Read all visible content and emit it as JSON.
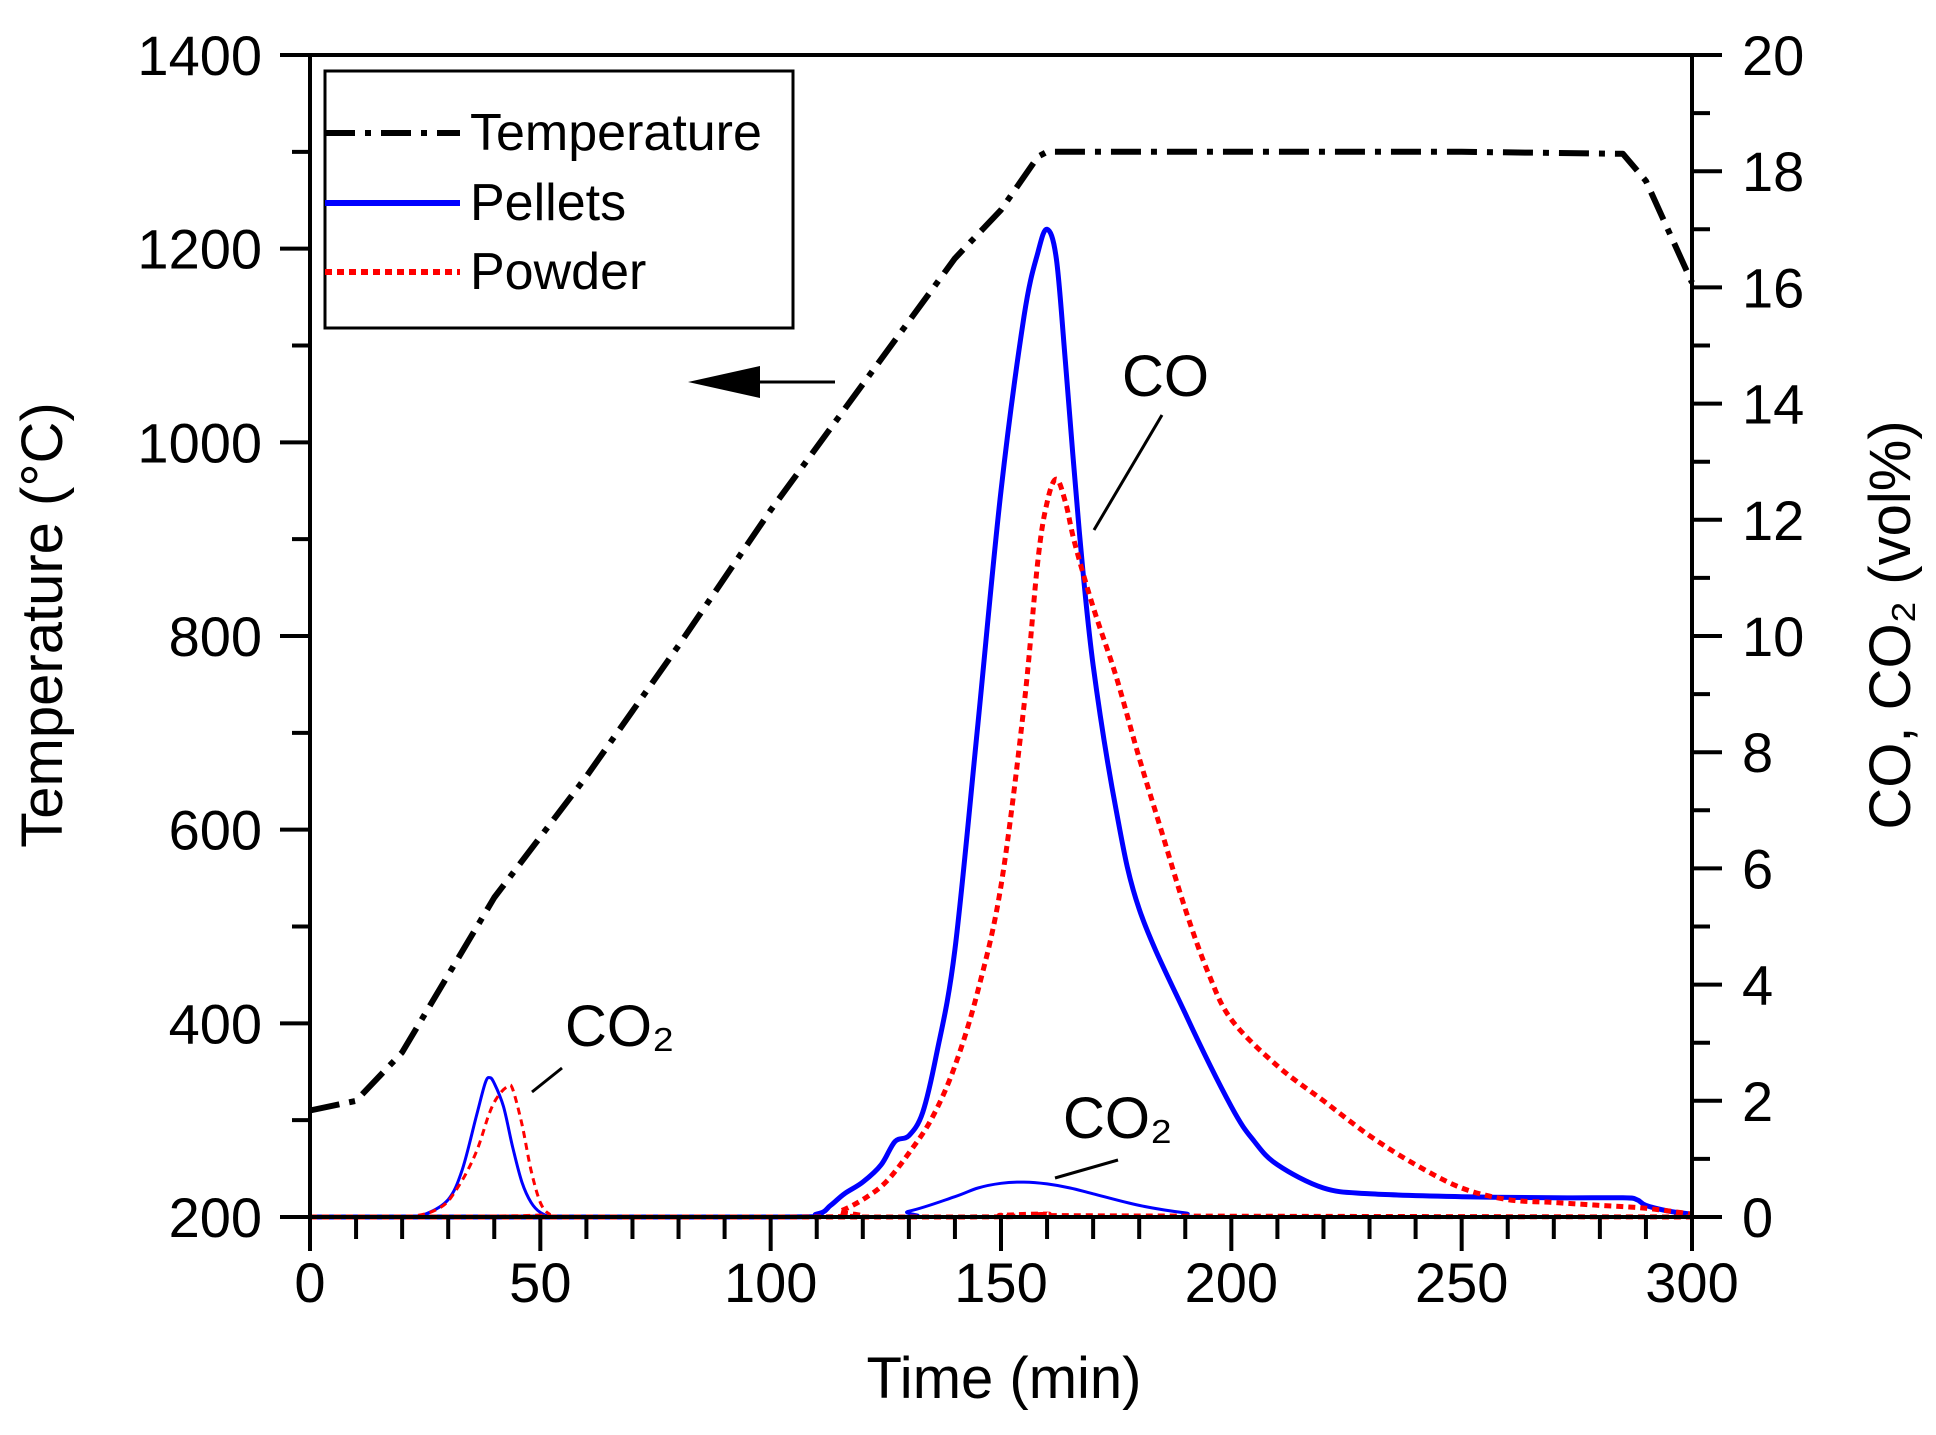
{
  "chart_data": {
    "type": "line",
    "xlabel": "Time (min)",
    "ylabel_left": "Temperature (°C)",
    "ylabel_right": "CO, CO₂ (vol%)",
    "xlim": [
      0,
      300
    ],
    "ylim_left": [
      200,
      1400
    ],
    "ylim_right": [
      0,
      20
    ],
    "x_ticks": [
      0,
      50,
      100,
      150,
      200,
      250,
      300
    ],
    "y_ticks_left": [
      200,
      400,
      600,
      800,
      1000,
      1200,
      1400
    ],
    "y_ticks_right": [
      0,
      2,
      4,
      6,
      8,
      10,
      12,
      14,
      16,
      18,
      20
    ],
    "grid": false,
    "legend_position": "top-left",
    "legend": [
      {
        "label": "Temperature",
        "color": "#000000",
        "style": "dash-dot"
      },
      {
        "label": "Pellets",
        "color": "#0000ff",
        "style": "solid"
      },
      {
        "label": "Powder",
        "color": "#ff0000",
        "style": "dotted"
      }
    ],
    "annotations": {
      "co_label": "CO",
      "co2_label_1": "CO₂",
      "co2_label_2": "CO₂"
    },
    "series": [
      {
        "name": "Temperature",
        "axis": "left",
        "color": "#000000",
        "x": [
          0,
          10,
          20,
          40,
          60,
          80,
          100,
          120,
          140,
          150,
          158,
          160,
          200,
          250,
          285,
          290,
          300
        ],
        "y": [
          310,
          320,
          370,
          530,
          655,
          790,
          930,
          1060,
          1190,
          1240,
          1295,
          1300,
          1300,
          1300,
          1298,
          1270,
          1165
        ]
      },
      {
        "name": "Pellets CO",
        "axis": "right",
        "color": "#0000ff",
        "x": [
          0,
          100,
          110,
          113,
          116,
          120,
          124,
          127,
          130,
          133,
          136,
          140,
          145,
          150,
          155,
          158,
          160,
          162,
          164,
          167,
          170,
          175,
          180,
          190,
          200,
          205,
          210,
          220,
          230,
          250,
          270,
          285,
          288,
          290,
          295,
          300
        ],
        "y": [
          0,
          0,
          0.05,
          0.2,
          0.4,
          0.6,
          0.9,
          1.3,
          1.4,
          1.8,
          2.8,
          4.6,
          8.5,
          12.5,
          15.5,
          16.6,
          17,
          16.5,
          14.7,
          11.8,
          9.5,
          7.0,
          5.3,
          3.5,
          1.9,
          1.3,
          0.9,
          0.5,
          0.4,
          0.35,
          0.33,
          0.33,
          0.3,
          0.2,
          0.1,
          0.05
        ]
      },
      {
        "name": "Powder CO",
        "axis": "right",
        "color": "#ff0000",
        "x": [
          0,
          110,
          115,
          120,
          125,
          130,
          135,
          140,
          145,
          150,
          155,
          158,
          160,
          162,
          164,
          166,
          170,
          175,
          180,
          185,
          190,
          195,
          200,
          210,
          220,
          230,
          240,
          250,
          260,
          270,
          280,
          290,
          300
        ],
        "y": [
          0,
          0,
          0.1,
          0.3,
          0.6,
          1.1,
          1.7,
          2.6,
          3.9,
          5.7,
          8.8,
          11.3,
          12.3,
          12.7,
          12.3,
          11.6,
          10.5,
          9.3,
          7.9,
          6.6,
          5.3,
          4.2,
          3.4,
          2.6,
          2.0,
          1.4,
          0.9,
          0.5,
          0.3,
          0.25,
          0.2,
          0.15,
          0.05
        ]
      },
      {
        "name": "Pellets CO₂ (1st peak)",
        "axis": "right",
        "color": "#0000ff",
        "x": [
          0,
          20,
          25,
          30,
          33,
          36,
          38,
          39,
          40,
          42,
          44,
          46,
          48,
          50,
          53,
          60,
          300
        ],
        "y": [
          0,
          0,
          0.05,
          0.3,
          0.8,
          1.7,
          2.3,
          2.4,
          2.3,
          1.9,
          1.2,
          0.6,
          0.25,
          0.08,
          0,
          0,
          0
        ]
      },
      {
        "name": "Powder CO₂ (1st peak)",
        "axis": "right",
        "color": "#ff0000",
        "x": [
          0,
          20,
          28,
          32,
          36,
          39,
          41,
          43,
          44,
          46,
          48,
          50,
          52,
          55,
          300
        ],
        "y": [
          0,
          0,
          0.15,
          0.5,
          1.1,
          1.8,
          2.1,
          2.25,
          2.2,
          1.6,
          0.8,
          0.25,
          0.05,
          0,
          0
        ]
      },
      {
        "name": "Pellets CO₂ (2nd peak)",
        "axis": "right",
        "color": "#0000ff",
        "x": [
          0,
          120,
          130,
          140,
          145,
          150,
          155,
          160,
          165,
          170,
          180,
          190,
          200,
          300
        ],
        "y": [
          0,
          0,
          0.1,
          0.35,
          0.5,
          0.58,
          0.6,
          0.57,
          0.5,
          0.4,
          0.2,
          0.07,
          0,
          0
        ]
      },
      {
        "name": "Powder CO₂ (2nd peak)",
        "axis": "right",
        "color": "#ff0000",
        "x": [
          0,
          140,
          150,
          160,
          170,
          300
        ],
        "y": [
          0,
          0,
          0.03,
          0.05,
          0.02,
          0
        ]
      }
    ]
  }
}
